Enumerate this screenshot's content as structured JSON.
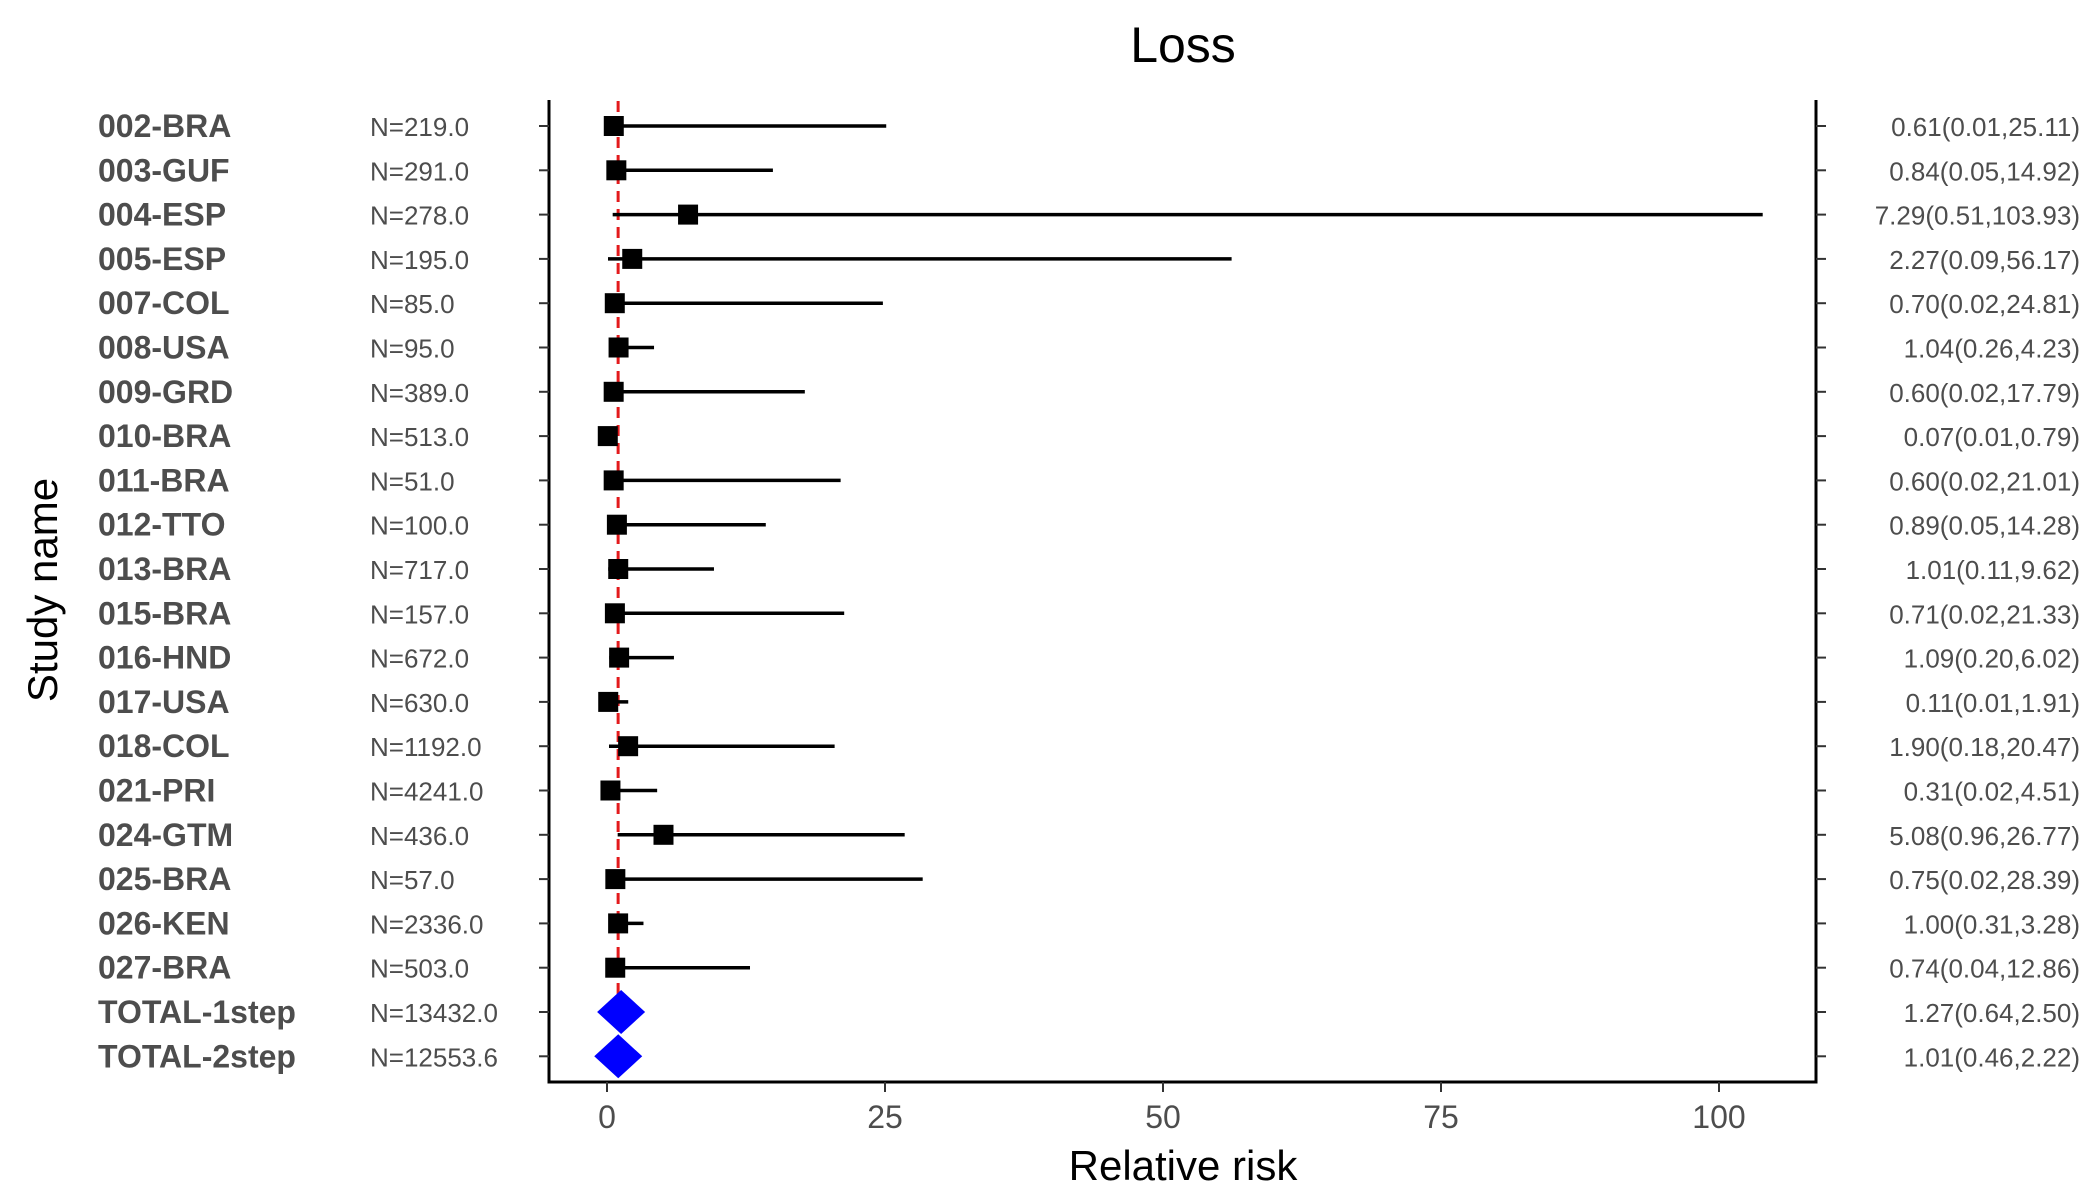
{
  "chart_data": {
    "type": "forest",
    "title": "Loss",
    "xlabel": "Relative risk",
    "ylabel": "Study name",
    "xlim": [
      -5,
      109
    ],
    "xticks": [
      0,
      25,
      50,
      75,
      100
    ],
    "reference_line": 1,
    "colors": {
      "reference_line": "#e31a1c",
      "point": "#000000",
      "total": "#0000ff",
      "axis": "#000000",
      "text": "#4d4d4d"
    },
    "rows": [
      {
        "study": "002-BRA",
        "n": "N=219.0",
        "rr": 0.61,
        "lo": 0.01,
        "hi": 25.11,
        "ci_text": "0.61(0.01,25.11)",
        "kind": "study"
      },
      {
        "study": "003-GUF",
        "n": "N=291.0",
        "rr": 0.84,
        "lo": 0.05,
        "hi": 14.92,
        "ci_text": "0.84(0.05,14.92)",
        "kind": "study"
      },
      {
        "study": "004-ESP",
        "n": "N=278.0",
        "rr": 7.29,
        "lo": 0.51,
        "hi": 103.93,
        "ci_text": "7.29(0.51,103.93)",
        "kind": "study"
      },
      {
        "study": "005-ESP",
        "n": "N=195.0",
        "rr": 2.27,
        "lo": 0.09,
        "hi": 56.17,
        "ci_text": "2.27(0.09,56.17)",
        "kind": "study"
      },
      {
        "study": "007-COL",
        "n": "N=85.0",
        "rr": 0.7,
        "lo": 0.02,
        "hi": 24.81,
        "ci_text": "0.70(0.02,24.81)",
        "kind": "study"
      },
      {
        "study": "008-USA",
        "n": "N=95.0",
        "rr": 1.04,
        "lo": 0.26,
        "hi": 4.23,
        "ci_text": "1.04(0.26,4.23)",
        "kind": "study"
      },
      {
        "study": "009-GRD",
        "n": "N=389.0",
        "rr": 0.6,
        "lo": 0.02,
        "hi": 17.79,
        "ci_text": "0.60(0.02,17.79)",
        "kind": "study"
      },
      {
        "study": "010-BRA",
        "n": "N=513.0",
        "rr": 0.07,
        "lo": 0.01,
        "hi": 0.79,
        "ci_text": "0.07(0.01,0.79)",
        "kind": "study"
      },
      {
        "study": "011-BRA",
        "n": "N=51.0",
        "rr": 0.6,
        "lo": 0.02,
        "hi": 21.01,
        "ci_text": "0.60(0.02,21.01)",
        "kind": "study"
      },
      {
        "study": "012-TTO",
        "n": "N=100.0",
        "rr": 0.89,
        "lo": 0.05,
        "hi": 14.28,
        "ci_text": "0.89(0.05,14.28)",
        "kind": "study"
      },
      {
        "study": "013-BRA",
        "n": "N=717.0",
        "rr": 1.01,
        "lo": 0.11,
        "hi": 9.62,
        "ci_text": "1.01(0.11,9.62)",
        "kind": "study"
      },
      {
        "study": "015-BRA",
        "n": "N=157.0",
        "rr": 0.71,
        "lo": 0.02,
        "hi": 21.33,
        "ci_text": "0.71(0.02,21.33)",
        "kind": "study"
      },
      {
        "study": "016-HND",
        "n": "N=672.0",
        "rr": 1.09,
        "lo": 0.2,
        "hi": 6.02,
        "ci_text": "1.09(0.20,6.02)",
        "kind": "study"
      },
      {
        "study": "017-USA",
        "n": "N=630.0",
        "rr": 0.11,
        "lo": 0.01,
        "hi": 1.91,
        "ci_text": "0.11(0.01,1.91)",
        "kind": "study"
      },
      {
        "study": "018-COL",
        "n": "N=1192.0",
        "rr": 1.9,
        "lo": 0.18,
        "hi": 20.47,
        "ci_text": "1.90(0.18,20.47)",
        "kind": "study"
      },
      {
        "study": "021-PRI",
        "n": "N=4241.0",
        "rr": 0.31,
        "lo": 0.02,
        "hi": 4.51,
        "ci_text": "0.31(0.02,4.51)",
        "kind": "study"
      },
      {
        "study": "024-GTM",
        "n": "N=436.0",
        "rr": 5.08,
        "lo": 0.96,
        "hi": 26.77,
        "ci_text": "5.08(0.96,26.77)",
        "kind": "study"
      },
      {
        "study": "025-BRA",
        "n": "N=57.0",
        "rr": 0.75,
        "lo": 0.02,
        "hi": 28.39,
        "ci_text": "0.75(0.02,28.39)",
        "kind": "study"
      },
      {
        "study": "026-KEN",
        "n": "N=2336.0",
        "rr": 1.0,
        "lo": 0.31,
        "hi": 3.28,
        "ci_text": "1.00(0.31,3.28)",
        "kind": "study"
      },
      {
        "study": "027-BRA",
        "n": "N=503.0",
        "rr": 0.74,
        "lo": 0.04,
        "hi": 12.86,
        "ci_text": "0.74(0.04,12.86)",
        "kind": "study"
      },
      {
        "study": "TOTAL-1step",
        "n": "N=13432.0",
        "rr": 1.27,
        "lo": 0.64,
        "hi": 2.5,
        "ci_text": "1.27(0.64,2.50)",
        "kind": "total"
      },
      {
        "study": "TOTAL-2step",
        "n": "N=12553.6",
        "rr": 1.01,
        "lo": 0.46,
        "hi": 2.22,
        "ci_text": "1.01(0.46,2.22)",
        "kind": "total"
      }
    ]
  }
}
